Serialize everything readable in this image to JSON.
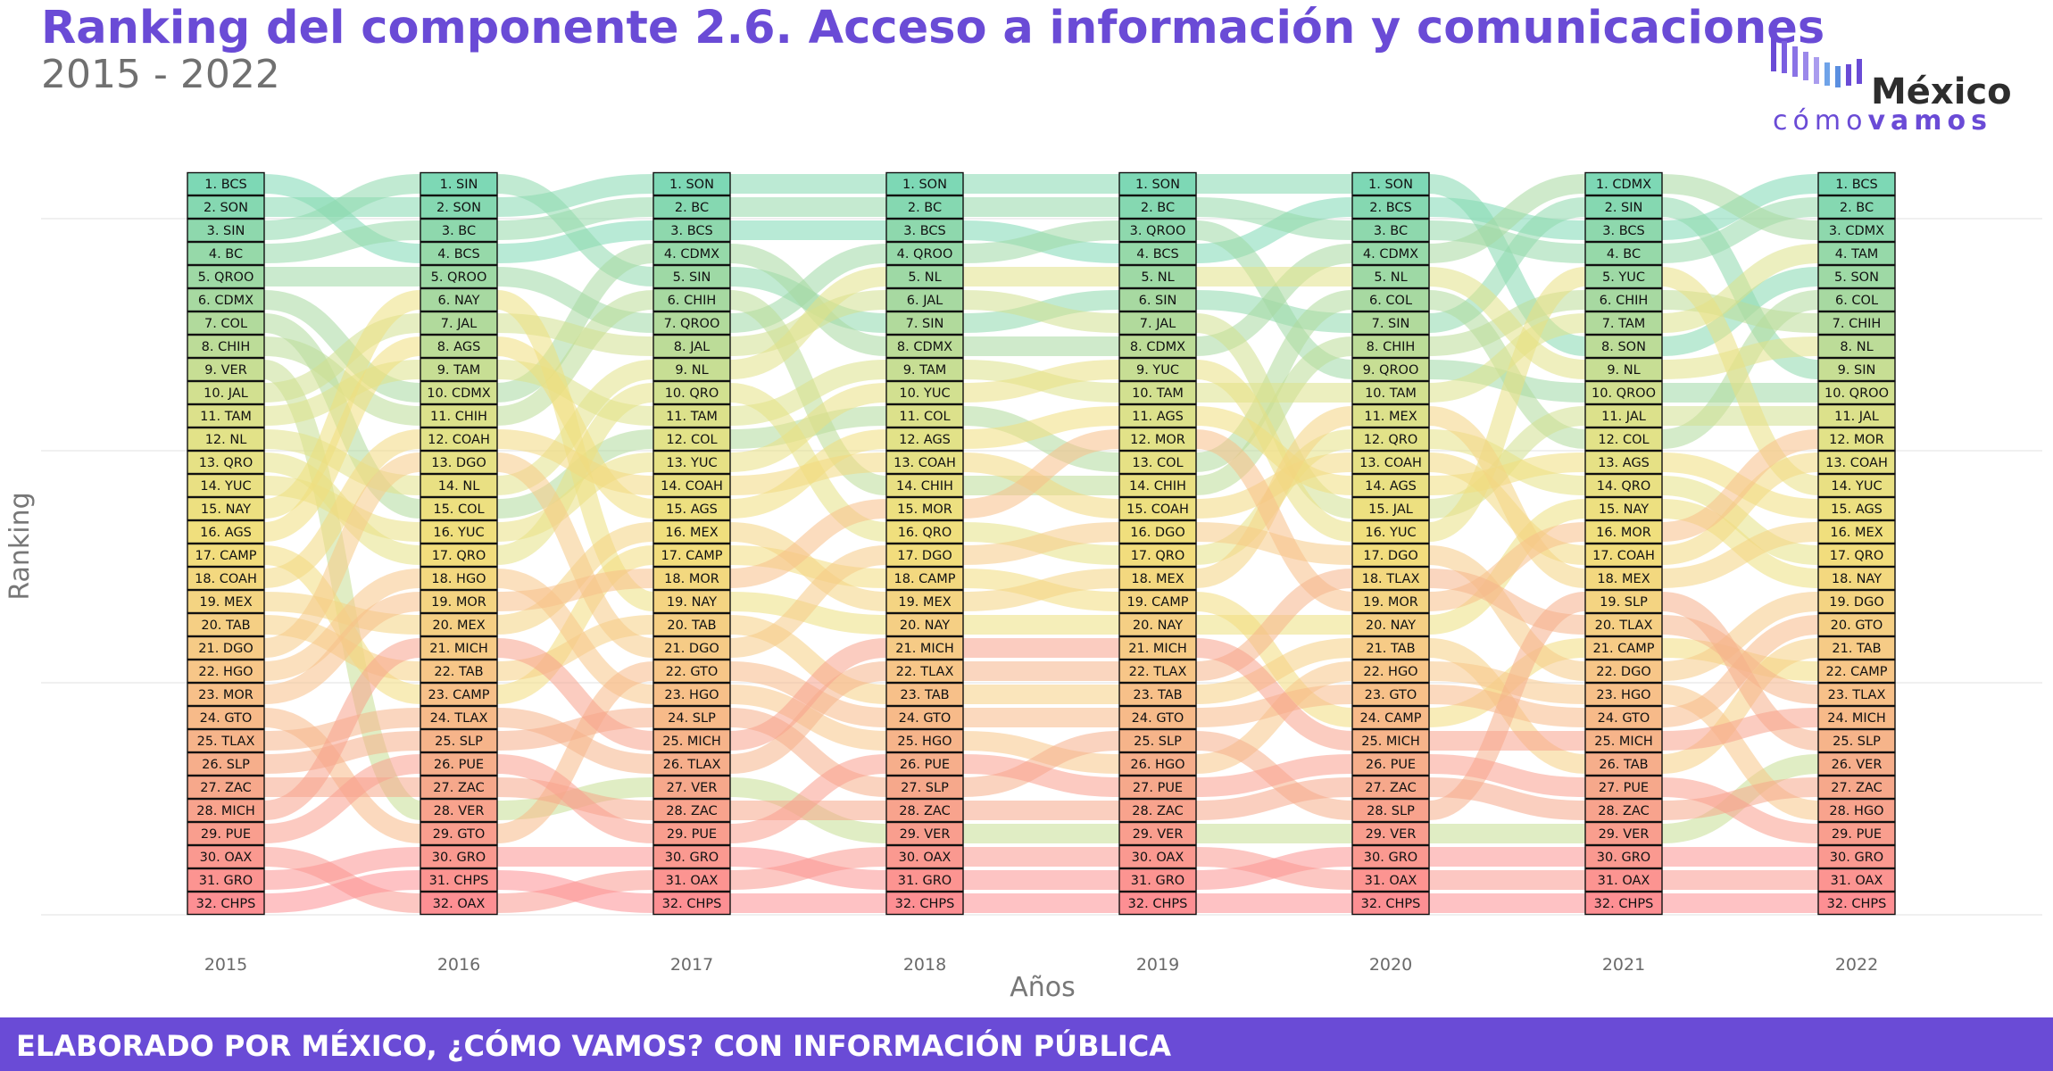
{
  "header": {
    "title": "Ranking del componente 2.6. Acceso a información y comunicaciones",
    "subtitle": "2015 - 2022"
  },
  "logo": {
    "name": "México",
    "tagline_light": "cómo",
    "tagline_bold": "vamos"
  },
  "footer": {
    "text": "ELABORADO POR MÉXICO, ¿CÓMO VAMOS? CON INFORMACIÓN PÚBLICA"
  },
  "colors": {
    "brand": "#6a4bd6",
    "gradient": [
      "#7dd8b5",
      "#a8d9a0",
      "#e0e28a",
      "#f2df7c",
      "#f7c888",
      "#f6a98b",
      "#fd8f93"
    ]
  },
  "chart_data": {
    "type": "bump",
    "title": "Ranking del componente 2.6. Acceso a información y comunicaciones",
    "subtitle": "2015 - 2022",
    "xlabel": "Años",
    "ylabel": "Ranking",
    "years": [
      "2015",
      "2016",
      "2017",
      "2018",
      "2019",
      "2020",
      "2021",
      "2022"
    ],
    "ylim": [
      1,
      32
    ],
    "grid": true,
    "rankings": {
      "2015": [
        "BCS",
        "SON",
        "SIN",
        "BC",
        "QROO",
        "CDMX",
        "COL",
        "CHIH",
        "VER",
        "JAL",
        "TAM",
        "NL",
        "QRO",
        "YUC",
        "NAY",
        "AGS",
        "CAMP",
        "COAH",
        "MEX",
        "TAB",
        "DGO",
        "HGO",
        "MOR",
        "GTO",
        "TLAX",
        "SLP",
        "ZAC",
        "MICH",
        "PUE",
        "OAX",
        "GRO",
        "CHPS"
      ],
      "2016": [
        "SIN",
        "SON",
        "BC",
        "BCS",
        "QROO",
        "NAY",
        "JAL",
        "AGS",
        "TAM",
        "CDMX",
        "CHIH",
        "COAH",
        "DGO",
        "NL",
        "COL",
        "YUC",
        "QRO",
        "HGO",
        "MOR",
        "MEX",
        "MICH",
        "TAB",
        "CAMP",
        "TLAX",
        "SLP",
        "PUE",
        "ZAC",
        "VER",
        "GTO",
        "GRO",
        "CHPS",
        "OAX"
      ],
      "2017": [
        "SON",
        "BC",
        "BCS",
        "CDMX",
        "SIN",
        "CHIH",
        "QROO",
        "JAL",
        "NL",
        "QRO",
        "TAM",
        "COL",
        "YUC",
        "COAH",
        "AGS",
        "MEX",
        "CAMP",
        "MOR",
        "NAY",
        "TAB",
        "DGO",
        "GTO",
        "HGO",
        "SLP",
        "MICH",
        "TLAX",
        "VER",
        "ZAC",
        "PUE",
        "GRO",
        "OAX",
        "CHPS"
      ],
      "2018": [
        "SON",
        "BC",
        "BCS",
        "QROO",
        "NL",
        "JAL",
        "SIN",
        "CDMX",
        "TAM",
        "YUC",
        "COL",
        "AGS",
        "COAH",
        "CHIH",
        "MOR",
        "QRO",
        "DGO",
        "CAMP",
        "MEX",
        "NAY",
        "MICH",
        "TLAX",
        "TAB",
        "GTO",
        "HGO",
        "PUE",
        "SLP",
        "ZAC",
        "VER",
        "OAX",
        "GRO",
        "CHPS"
      ],
      "2019": [
        "SON",
        "BC",
        "QROO",
        "BCS",
        "NL",
        "SIN",
        "JAL",
        "CDMX",
        "YUC",
        "TAM",
        "AGS",
        "MOR",
        "COL",
        "CHIH",
        "COAH",
        "DGO",
        "QRO",
        "MEX",
        "CAMP",
        "NAY",
        "MICH",
        "TLAX",
        "TAB",
        "GTO",
        "SLP",
        "HGO",
        "PUE",
        "ZAC",
        "VER",
        "OAX",
        "GRO",
        "CHPS"
      ],
      "2020": [
        "SON",
        "BCS",
        "BC",
        "CDMX",
        "NL",
        "COL",
        "SIN",
        "CHIH",
        "QROO",
        "TAM",
        "MEX",
        "QRO",
        "COAH",
        "AGS",
        "JAL",
        "YUC",
        "DGO",
        "TLAX",
        "MOR",
        "NAY",
        "TAB",
        "HGO",
        "GTO",
        "CAMP",
        "MICH",
        "PUE",
        "ZAC",
        "SLP",
        "VER",
        "GRO",
        "OAX",
        "CHPS"
      ],
      "2021": [
        "CDMX",
        "SIN",
        "BCS",
        "BC",
        "YUC",
        "CHIH",
        "TAM",
        "SON",
        "NL",
        "QROO",
        "JAL",
        "COL",
        "AGS",
        "QRO",
        "NAY",
        "MOR",
        "COAH",
        "MEX",
        "SLP",
        "TLAX",
        "CAMP",
        "DGO",
        "HGO",
        "GTO",
        "MICH",
        "TAB",
        "PUE",
        "ZAC",
        "VER",
        "GRO",
        "OAX",
        "CHPS"
      ],
      "2022": [
        "BCS",
        "BC",
        "CDMX",
        "TAM",
        "SON",
        "COL",
        "CHIH",
        "NL",
        "SIN",
        "QROO",
        "JAL",
        "MOR",
        "COAH",
        "YUC",
        "AGS",
        "MEX",
        "QRO",
        "NAY",
        "DGO",
        "GTO",
        "TAB",
        "CAMP",
        "TLAX",
        "MICH",
        "SLP",
        "VER",
        "ZAC",
        "HGO",
        "PUE",
        "GRO",
        "OAX",
        "CHPS"
      ]
    }
  }
}
